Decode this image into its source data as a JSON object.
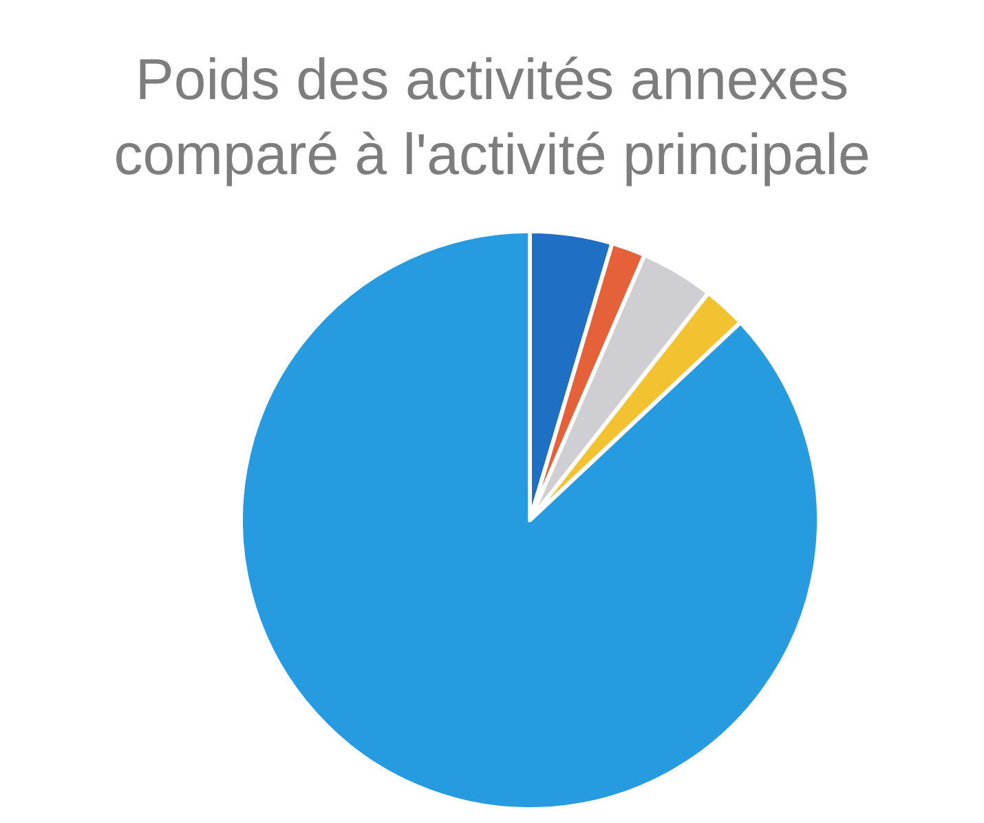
{
  "chart_data": {
    "type": "pie",
    "title": "Poids des activités annexes\ncomparé à l'activité principale",
    "categories": [
      null,
      null,
      null,
      null,
      null
    ],
    "values": [
      4.6,
      1.9,
      4.1,
      2.4,
      87.0
    ],
    "colors": [
      "#1f6fc4",
      "#e5613a",
      "#cfcfd3",
      "#f2c230",
      "#279be0"
    ]
  }
}
